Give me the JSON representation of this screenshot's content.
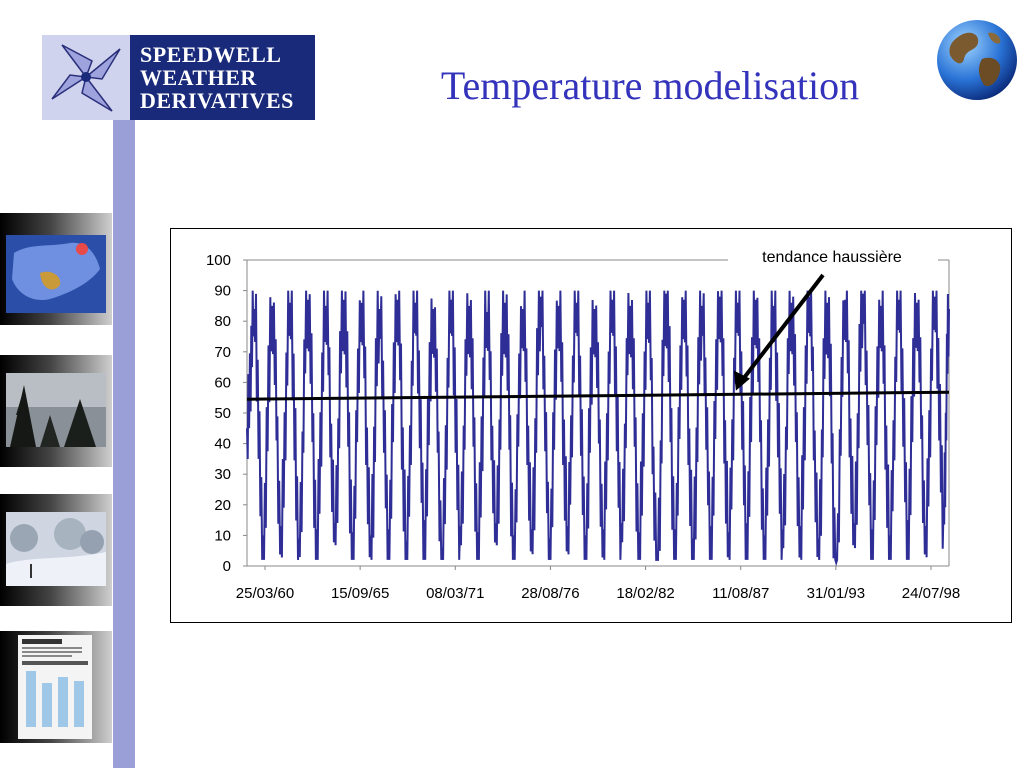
{
  "logo": {
    "lines": [
      "SPEEDWELL",
      "WEATHER",
      "DERIVATIVES"
    ]
  },
  "title": "Temperature modelisation",
  "chart_data": {
    "type": "line",
    "title": "",
    "xlabel": "",
    "ylabel": "",
    "ylim": [
      0,
      100
    ],
    "yticks": [
      "100",
      "90",
      "80",
      "70",
      "60",
      "50",
      "40",
      "30",
      "20",
      "10",
      "0"
    ],
    "xticks": [
      "25/03/60",
      "15/09/65",
      "08/03/71",
      "28/08/76",
      "18/02/82",
      "11/08/87",
      "31/01/93",
      "24/07/98"
    ],
    "grid": false,
    "colors": {
      "temperature": "#2e2e96",
      "trend": "#000000"
    },
    "series": [
      {
        "values_x_year": [
          1960.2,
          1960.6,
          1961.1,
          1961.6,
          1962.1,
          1962.6,
          1963.1,
          1963.6,
          1964.1,
          1964.6,
          1965.1,
          1965.6,
          1966.1,
          1966.6,
          1967.1,
          1967.6,
          1968.1,
          1968.6,
          1969.1,
          1969.6,
          1970.1,
          1970.6,
          1971.1,
          1971.6,
          1972.1,
          1972.6,
          1973.1,
          1973.6,
          1974.1,
          1974.6,
          1975.1,
          1975.6,
          1976.1,
          1976.6,
          1977.1,
          1977.6,
          1978.1,
          1978.6,
          1979.1,
          1979.6,
          1980.1,
          1980.6,
          1981.1,
          1981.6,
          1982.1,
          1982.6,
          1983.1,
          1983.6,
          1984.1,
          1984.6,
          1985.1,
          1985.6,
          1986.1,
          1986.6,
          1987.1,
          1987.6,
          1988.1,
          1988.6,
          1989.1,
          1989.6,
          1990.1,
          1990.6,
          1991.1,
          1991.6,
          1992.1,
          1992.6,
          1993.1,
          1993.6,
          1994.1,
          1994.6,
          1995.1,
          1995.6,
          1996.1,
          1996.6,
          1997.1,
          1997.6,
          1998.1,
          1998.6,
          1999.1,
          1999.4
        ],
        "values_y": [
          45,
          84,
          10,
          85,
          13,
          86,
          9,
          87,
          12,
          85,
          14,
          87,
          11,
          86,
          10,
          84,
          12,
          87,
          8,
          86,
          15,
          84,
          6,
          87,
          13,
          85,
          11,
          83,
          14,
          86,
          10,
          84,
          12,
          88,
          9,
          85,
          13,
          86,
          10,
          84,
          12,
          87,
          14,
          85,
          11,
          86,
          2,
          89,
          12,
          87,
          9,
          85,
          13,
          88,
          11,
          86,
          14,
          87,
          10,
          85,
          12,
          86,
          13,
          88,
          9,
          86,
          1,
          87,
          14,
          89,
          12,
          85,
          10,
          87,
          15,
          86,
          13,
          88,
          20,
          84
        ]
      },
      {
        "name": "tendance",
        "x_year": [
          1960.2,
          1999.4
        ],
        "values_y": [
          54.5,
          56.8
        ]
      }
    ],
    "annotation": {
      "text": "tendance haussière",
      "target_year": 1987.5,
      "target_y": 56
    }
  }
}
